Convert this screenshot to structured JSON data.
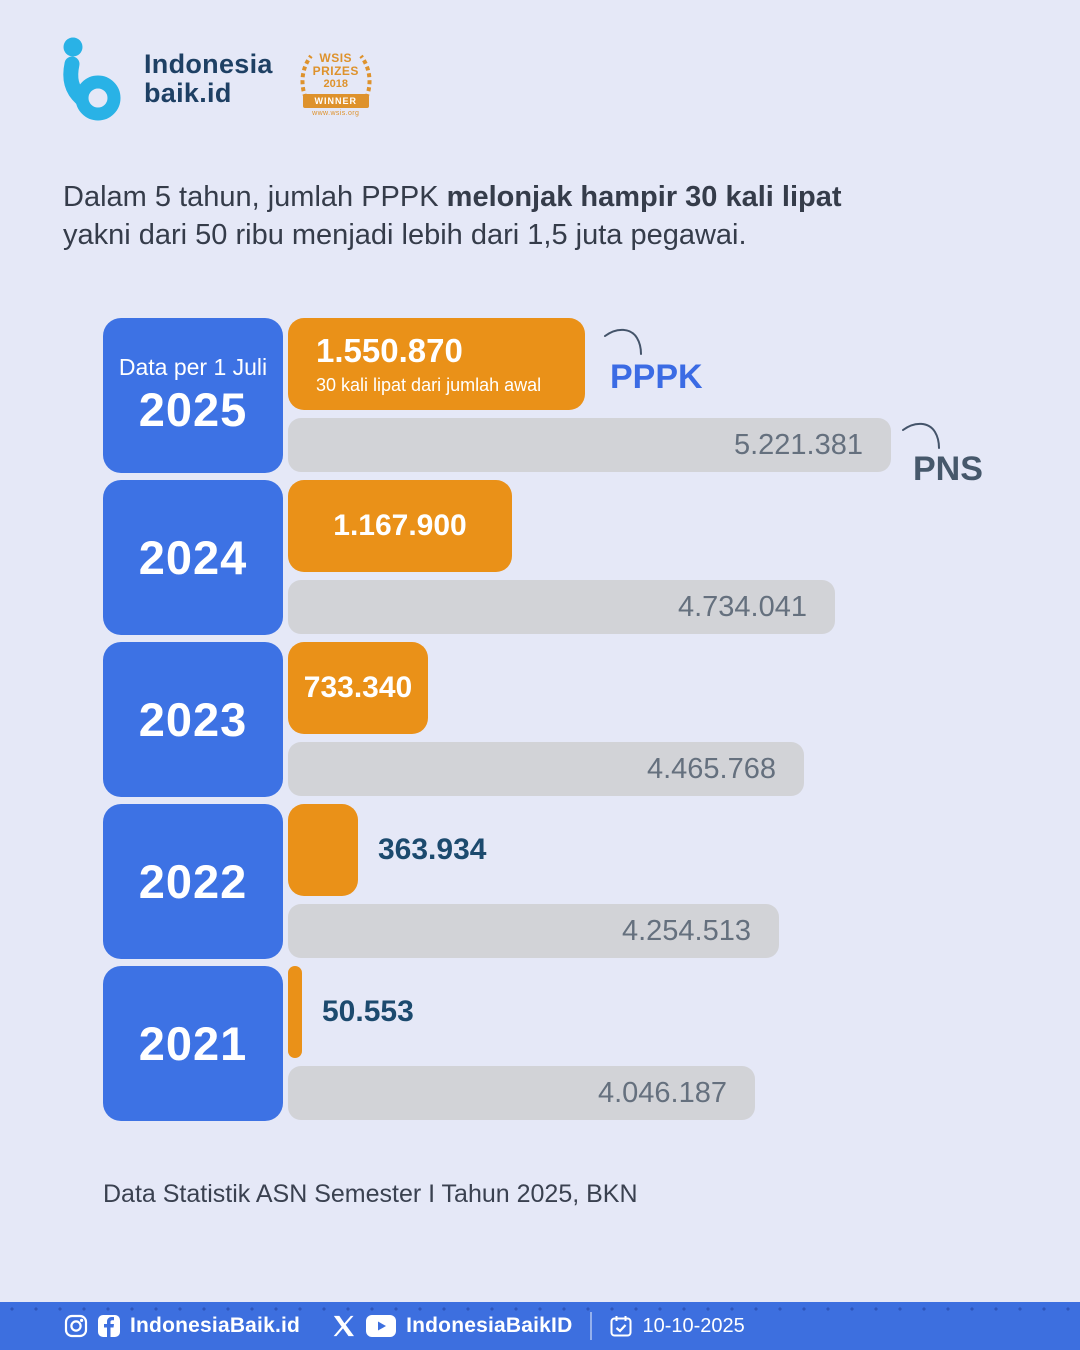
{
  "logo": {
    "line1": "Indonesia",
    "line2": "baik.id",
    "icon_color": "#29B2E6",
    "text_color": "#1E4064"
  },
  "award": {
    "line1": "WSIS",
    "line2": "PRIZES",
    "line3": "2018",
    "ribbon": "WINNER",
    "url": "www.wsis.org",
    "color": "#DE922C"
  },
  "headline": {
    "line1_regular": "Dalam 5 tahun, jumlah PPPK ",
    "line1_bold": "melonjak hampir 30 kali lipat",
    "line2": "yakni dari 50 ribu menjadi lebih dari 1,5 juta pegawai."
  },
  "chart": {
    "rows": [
      {
        "year": "2025",
        "year_note": "Data per 1 Juli"
      },
      {
        "year": "2024"
      },
      {
        "year": "2023"
      },
      {
        "year": "2022"
      },
      {
        "year": "2021"
      }
    ]
  },
  "chart_data": {
    "type": "bar",
    "orientation": "horizontal",
    "categories": [
      "2025",
      "2024",
      "2023",
      "2022",
      "2021"
    ],
    "series": [
      {
        "name": "PPPK",
        "color": "#EA9118",
        "values": [
          1550870,
          1167900,
          733340,
          363934,
          50553
        ],
        "labels": [
          "1.550.870",
          "1.167.900",
          "733.340",
          "363.934",
          "50.553"
        ]
      },
      {
        "name": "PNS",
        "color": "#D2D3D7",
        "values": [
          5221381,
          4734041,
          4465768,
          4254513,
          4046187
        ],
        "labels": [
          "5.221.381",
          "4.734.041",
          "4.465.768",
          "4.254.513",
          "4.046.187"
        ]
      }
    ],
    "annotation_2025": "30 kali lipat dari jumlah awal",
    "category_note_2025": "Data per 1 Juli",
    "xlim": [
      0,
      5221381
    ],
    "grid": false,
    "legend_position": "inline-right-of-2025-bars"
  },
  "source": "Data Statistik ASN Semester I Tahun 2025, BKN",
  "footer": {
    "handle_left": "IndonesiaBaik.id",
    "handle_right": "IndonesiaBaikID",
    "date": "10-10-2025"
  },
  "colors": {
    "background": "#E5E8F7",
    "blue": "#3D72E4",
    "orange": "#EA9118",
    "gray_bar": "#D2D3D7",
    "headline_text": "#353C4A",
    "outside_value_text": "#1C4A6E",
    "pppk_label": "#3B6BE4",
    "pns_label": "#46586B",
    "footer_blue": "#3D6FDF"
  }
}
